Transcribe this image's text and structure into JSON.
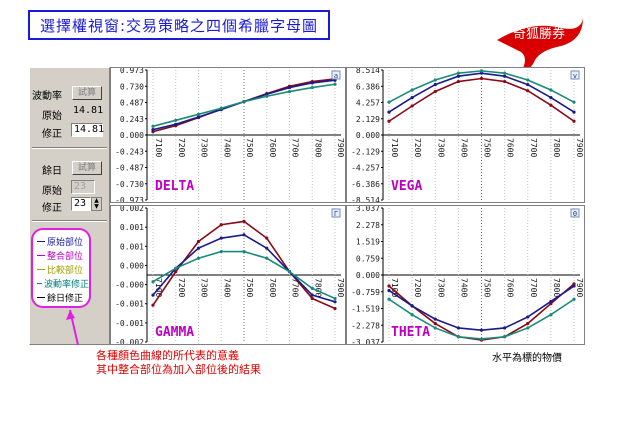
{
  "title": "選擇權視窗:交易策略之四個希臘字母圖",
  "logo_text": "奇狐勝券",
  "panel": {
    "vol_label": "波動率",
    "vol_test_btn": "試算",
    "vol_orig_label": "原始",
    "vol_orig_value": "14.81",
    "vol_mod_label": "修正",
    "vol_mod_value": "14.81",
    "days_label": "餘日",
    "days_test_btn": "試算",
    "days_orig_label": "原始",
    "days_orig_value": "23",
    "days_mod_label": "修正",
    "days_mod_value": "23"
  },
  "legend": [
    {
      "label": "原始部位",
      "color": "#1a1aa0"
    },
    {
      "label": "整合部位",
      "color": "#c000c0"
    },
    {
      "label": "比較部位",
      "color": "#a0a000"
    },
    {
      "label": "波動率修正",
      "color": "#008080"
    },
    {
      "label": "餘日修正",
      "color": "#000000"
    }
  ],
  "note_line1": "各種顏色曲線的所代表的意義",
  "note_line2": "其中整合部位為加入部位後的結果",
  "x_note": "水平為標的物價",
  "colors": {
    "series_a": "#8b0a1a",
    "series_b": "#1a1a8b",
    "series_c": "#1a8b7a",
    "label": "#c000c0"
  },
  "chart_data": [
    {
      "type": "line",
      "title": "DELTA",
      "corner": "a",
      "x": [
        7100,
        7200,
        7300,
        7400,
        7500,
        7600,
        7700,
        7800,
        7900
      ],
      "ylim": [
        -0.973,
        0.973
      ],
      "yticks": [
        "0.973",
        "0.730",
        "0.487",
        "0.243",
        "0.000",
        "-0.243",
        "-0.487",
        "-0.730",
        "-0.973"
      ],
      "series": [
        {
          "values": [
            0.05,
            0.14,
            0.26,
            0.39,
            0.5,
            0.62,
            0.73,
            0.8,
            0.84
          ]
        },
        {
          "values": [
            0.08,
            0.16,
            0.27,
            0.38,
            0.5,
            0.61,
            0.71,
            0.78,
            0.82
          ]
        },
        {
          "values": [
            0.13,
            0.22,
            0.31,
            0.4,
            0.5,
            0.58,
            0.65,
            0.71,
            0.76
          ]
        }
      ]
    },
    {
      "type": "line",
      "title": "VEGA",
      "corner": "v",
      "x": [
        7100,
        7200,
        7300,
        7400,
        7500,
        7600,
        7700,
        7800,
        7900
      ],
      "ylim": [
        -8.514,
        8.514
      ],
      "yticks": [
        "8.514",
        "6.386",
        "4.257",
        "2.129",
        "0.000",
        "-2.129",
        "-4.257",
        "-6.386",
        "-8.514"
      ],
      "series": [
        {
          "values": [
            1.8,
            3.8,
            5.7,
            7.0,
            7.4,
            7.0,
            5.8,
            3.9,
            1.8
          ]
        },
        {
          "values": [
            3.0,
            4.9,
            6.6,
            7.7,
            8.1,
            7.7,
            6.6,
            4.9,
            3.0
          ]
        },
        {
          "values": [
            4.3,
            5.9,
            7.2,
            8.1,
            8.4,
            8.1,
            7.2,
            5.9,
            4.3
          ]
        }
      ]
    },
    {
      "type": "line",
      "title": "GAMMA",
      "corner": "Γ",
      "x": [
        7100,
        7200,
        7300,
        7400,
        7500,
        7600,
        7700,
        7800,
        7900
      ],
      "ylim": [
        -0.002,
        0.002
      ],
      "yticks": [
        "0.002",
        "0.001",
        "0.001",
        "0.000",
        "-0.000",
        "-0.001",
        "-0.001",
        "-0.002"
      ],
      "series": [
        {
          "values": [
            -0.0009,
            0.0001,
            0.001,
            0.0015,
            0.0016,
            0.0011,
            0.0001,
            -0.0007,
            -0.001
          ]
        },
        {
          "values": [
            -0.0006,
            0.0002,
            0.0008,
            0.0011,
            0.0012,
            0.0008,
            0.0001,
            -0.0006,
            -0.0008
          ]
        },
        {
          "values": [
            -0.0002,
            0.0002,
            0.0005,
            0.0007,
            0.0007,
            0.0005,
            0.0001,
            -0.0004,
            -0.0007
          ]
        }
      ]
    },
    {
      "type": "line",
      "title": "THETA",
      "corner": "Θ",
      "x": [
        7100,
        7200,
        7300,
        7400,
        7500,
        7600,
        7700,
        7800,
        7900
      ],
      "ylim": [
        -3.037,
        3.037
      ],
      "yticks": [
        "3.037",
        "2.278",
        "1.519",
        "0.759",
        "0.000",
        "-0.759",
        "-1.519",
        "-2.278",
        "-3.037"
      ],
      "series": [
        {
          "values": [
            -0.5,
            -1.4,
            -2.2,
            -2.8,
            -2.95,
            -2.8,
            -2.2,
            -1.3,
            -0.4
          ]
        },
        {
          "values": [
            -0.7,
            -1.4,
            -2.0,
            -2.4,
            -2.5,
            -2.4,
            -1.9,
            -1.2,
            -0.5
          ]
        },
        {
          "values": [
            -1.1,
            -1.8,
            -2.4,
            -2.8,
            -2.9,
            -2.8,
            -2.4,
            -1.8,
            -1.1
          ]
        }
      ]
    }
  ]
}
